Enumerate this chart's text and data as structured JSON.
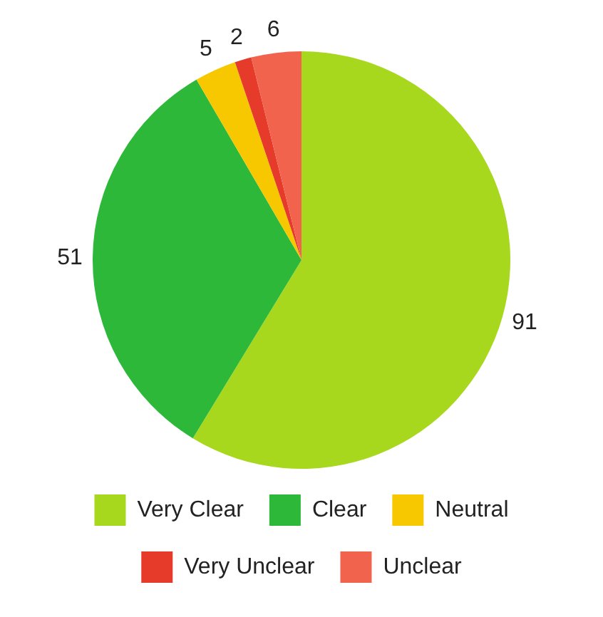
{
  "chart_data": {
    "type": "pie",
    "categories": [
      "Very Clear",
      "Clear",
      "Neutral",
      "Very Unclear",
      "Unclear"
    ],
    "values": [
      91,
      51,
      5,
      2,
      6
    ],
    "colors": [
      "#a8d81e",
      "#2db83a",
      "#f7c800",
      "#e63a2a",
      "#f2634e"
    ],
    "data_labels": true,
    "legend": "bottom"
  }
}
